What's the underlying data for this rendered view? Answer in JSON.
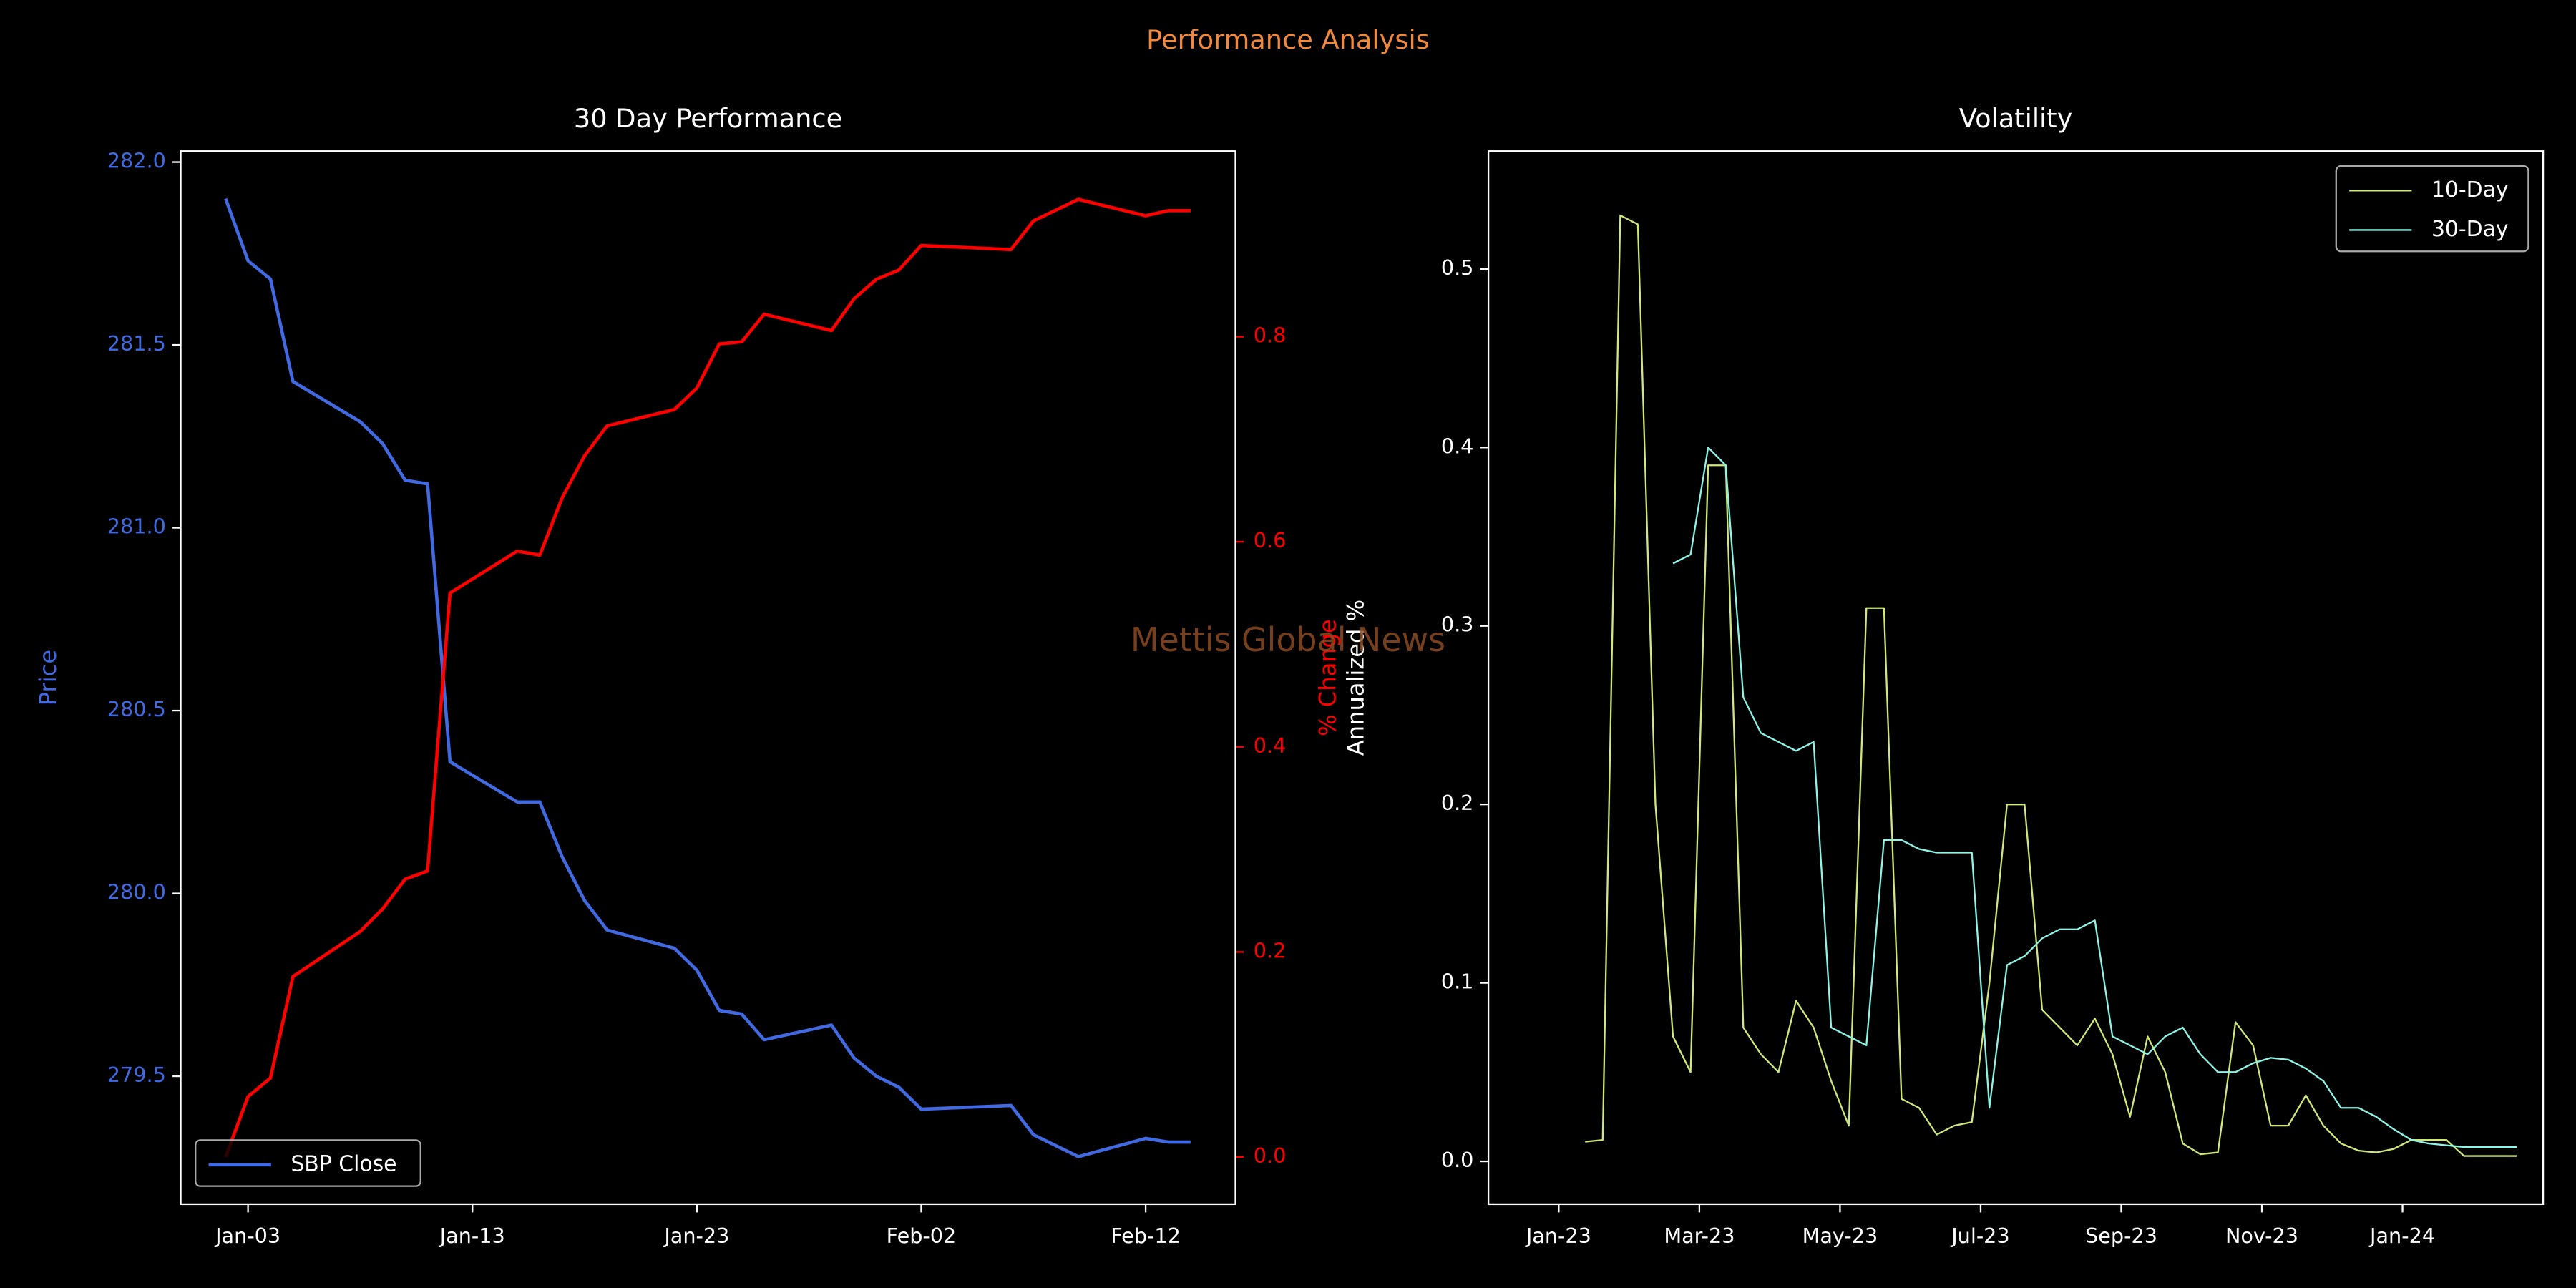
{
  "title": "Performance Analysis",
  "watermark": "Mettis Global News",
  "chart_data": [
    {
      "type": "line",
      "title": "30 Day Performance",
      "date_format": "%b-%d",
      "x": [
        "Jan-02",
        "Jan-03",
        "Jan-04",
        "Jan-05",
        "Jan-08",
        "Jan-09",
        "Jan-10",
        "Jan-11",
        "Jan-12",
        "Jan-15",
        "Jan-16",
        "Jan-17",
        "Jan-18",
        "Jan-19",
        "Jan-22",
        "Jan-23",
        "Jan-24",
        "Jan-25",
        "Jan-26",
        "Jan-29",
        "Jan-30",
        "Jan-31",
        "Feb-01",
        "Feb-02",
        "Feb-06",
        "Feb-07",
        "Feb-09",
        "Feb-12",
        "Feb-13",
        "Feb-14"
      ],
      "xlim": [
        "Dec-31",
        "Feb-16"
      ],
      "xticks": [
        "Jan-03",
        "Jan-13",
        "Jan-23",
        "Feb-02",
        "Feb-12"
      ],
      "ylabel": "Price",
      "y2label": "% Change",
      "ylim": [
        279.15,
        282.03
      ],
      "yticks": [
        279.5,
        {
          "value": 280,
          "label": "280.0"
        },
        280.5,
        {
          "value": 281,
          "label": "281.0"
        },
        281.5,
        {
          "value": 282,
          "label": "282.0"
        }
      ],
      "y2lim": [
        -0.046,
        0.981
      ],
      "y2ticks": [
        {
          "value": 0,
          "label": "0.0"
        },
        0.2,
        0.4,
        0.6,
        0.8
      ],
      "legend": "lower left",
      "series": [
        {
          "name": "SBP Close",
          "color": "#4169e1",
          "values": [
            281.9,
            281.73,
            281.68,
            281.4,
            281.29,
            281.23,
            281.13,
            281.12,
            280.36,
            280.25,
            280.25,
            280.1,
            279.98,
            279.9,
            279.85,
            279.79,
            279.68,
            279.67,
            279.6,
            279.64,
            279.55,
            279.5,
            279.47,
            279.41,
            279.42,
            279.34,
            279.28,
            279.33,
            279.32,
            279.32
          ]
        },
        {
          "color": "#ff0000",
          "axis": "y2",
          "values": [
            0,
            0.059,
            0.077,
            0.176,
            0.22,
            0.242,
            0.271,
            0.279,
            0.55,
            0.591,
            0.587,
            0.643,
            0.684,
            0.713,
            0.729,
            0.75,
            0.793,
            0.795,
            0.822,
            0.806,
            0.837,
            0.856,
            0.865,
            0.889,
            0.885,
            0.913,
            0.934,
            0.918,
            0.923,
            0.923
          ]
        }
      ]
    },
    {
      "type": "line",
      "title": "Volatility",
      "date_format": "%b-%y",
      "x": [
        "Jan-23",
        "Jan-23",
        "Jan-23",
        "Jan-23",
        "Feb-23",
        "Feb-23",
        "Feb-23",
        "Feb-23",
        "Mar-23",
        "Mar-23",
        "Mar-23",
        "Mar-23",
        "Apr-23",
        "Apr-23",
        "Apr-23",
        "Apr-23",
        "May-23",
        "May-23",
        "May-23",
        "May-23",
        "Jun-23",
        "Jun-23",
        "Jun-23",
        "Jun-23",
        "Jul-23",
        "Jul-23",
        "Jul-23",
        "Jul-23",
        "Aug-23",
        "Aug-23",
        "Aug-23",
        "Aug-23",
        "Sep-23",
        "Sep-23",
        "Sep-23",
        "Sep-23",
        "Oct-23",
        "Oct-23",
        "Oct-23",
        "Oct-23",
        "Nov-23",
        "Nov-23",
        "Nov-23",
        "Nov-23",
        "Dec-23",
        "Dec-23",
        "Dec-23",
        "Dec-23",
        "Jan-24",
        "Jan-24",
        "Jan-24",
        "Jan-24",
        "Feb-24",
        "Feb-24",
        "Feb-24",
        "Feb-24"
      ],
      "xlim": [
        "Dec-22",
        "Mar-24"
      ],
      "xticks": [
        "Jan-23",
        "Mar-23",
        "May-23",
        "Jul-23",
        "Sep-23",
        "Nov-23",
        "Jan-24"
      ],
      "ylabel": "Annualized %",
      "ylim": [
        -0.024,
        0.566
      ],
      "yticks": [
        {
          "value": 0,
          "label": "0.0"
        },
        0.1,
        0.2,
        0.3,
        0.4,
        0.5
      ],
      "legend": "upper right",
      "series": [
        {
          "name": "10-Day",
          "color": "#cfe87a",
          "values": [
            null,
            0.011,
            0.012,
            0.53,
            0.525,
            0.2,
            0.07,
            0.05,
            0.39,
            0.39,
            0.075,
            0.06,
            0.05,
            0.09,
            0.075,
            0.045,
            0.02,
            0.31,
            0.31,
            0.035,
            0.03,
            0.015,
            0.02,
            0.022,
            0.1,
            0.2,
            0.2,
            0.085,
            0.075,
            0.065,
            0.08,
            0.06,
            0.025,
            0.07,
            0.05,
            0.01,
            0.004,
            0.005,
            0.078,
            0.065,
            0.02,
            0.02,
            0.037,
            0.02,
            0.01,
            0.006,
            0.005,
            0.007,
            0.012,
            0.012,
            0.012,
            0.003,
            0.003,
            0.003,
            0.003,
            null
          ]
        },
        {
          "name": "30-Day",
          "color": "#8cf5e6",
          "values": [
            null,
            null,
            null,
            null,
            null,
            null,
            0.335,
            0.34,
            0.4,
            0.39,
            0.26,
            0.24,
            0.235,
            0.23,
            0.235,
            0.075,
            0.07,
            0.065,
            0.18,
            0.18,
            0.175,
            0.173,
            0.173,
            0.173,
            0.03,
            0.11,
            0.115,
            0.125,
            0.13,
            0.13,
            0.135,
            0.07,
            0.065,
            0.06,
            0.07,
            0.075,
            0.06,
            0.05,
            0.05,
            0.055,
            0.058,
            0.057,
            0.052,
            0.045,
            0.03,
            0.03,
            0.025,
            0.018,
            0.012,
            0.01,
            0.009,
            0.008,
            0.008,
            0.008,
            0.008,
            null
          ]
        }
      ]
    }
  ]
}
